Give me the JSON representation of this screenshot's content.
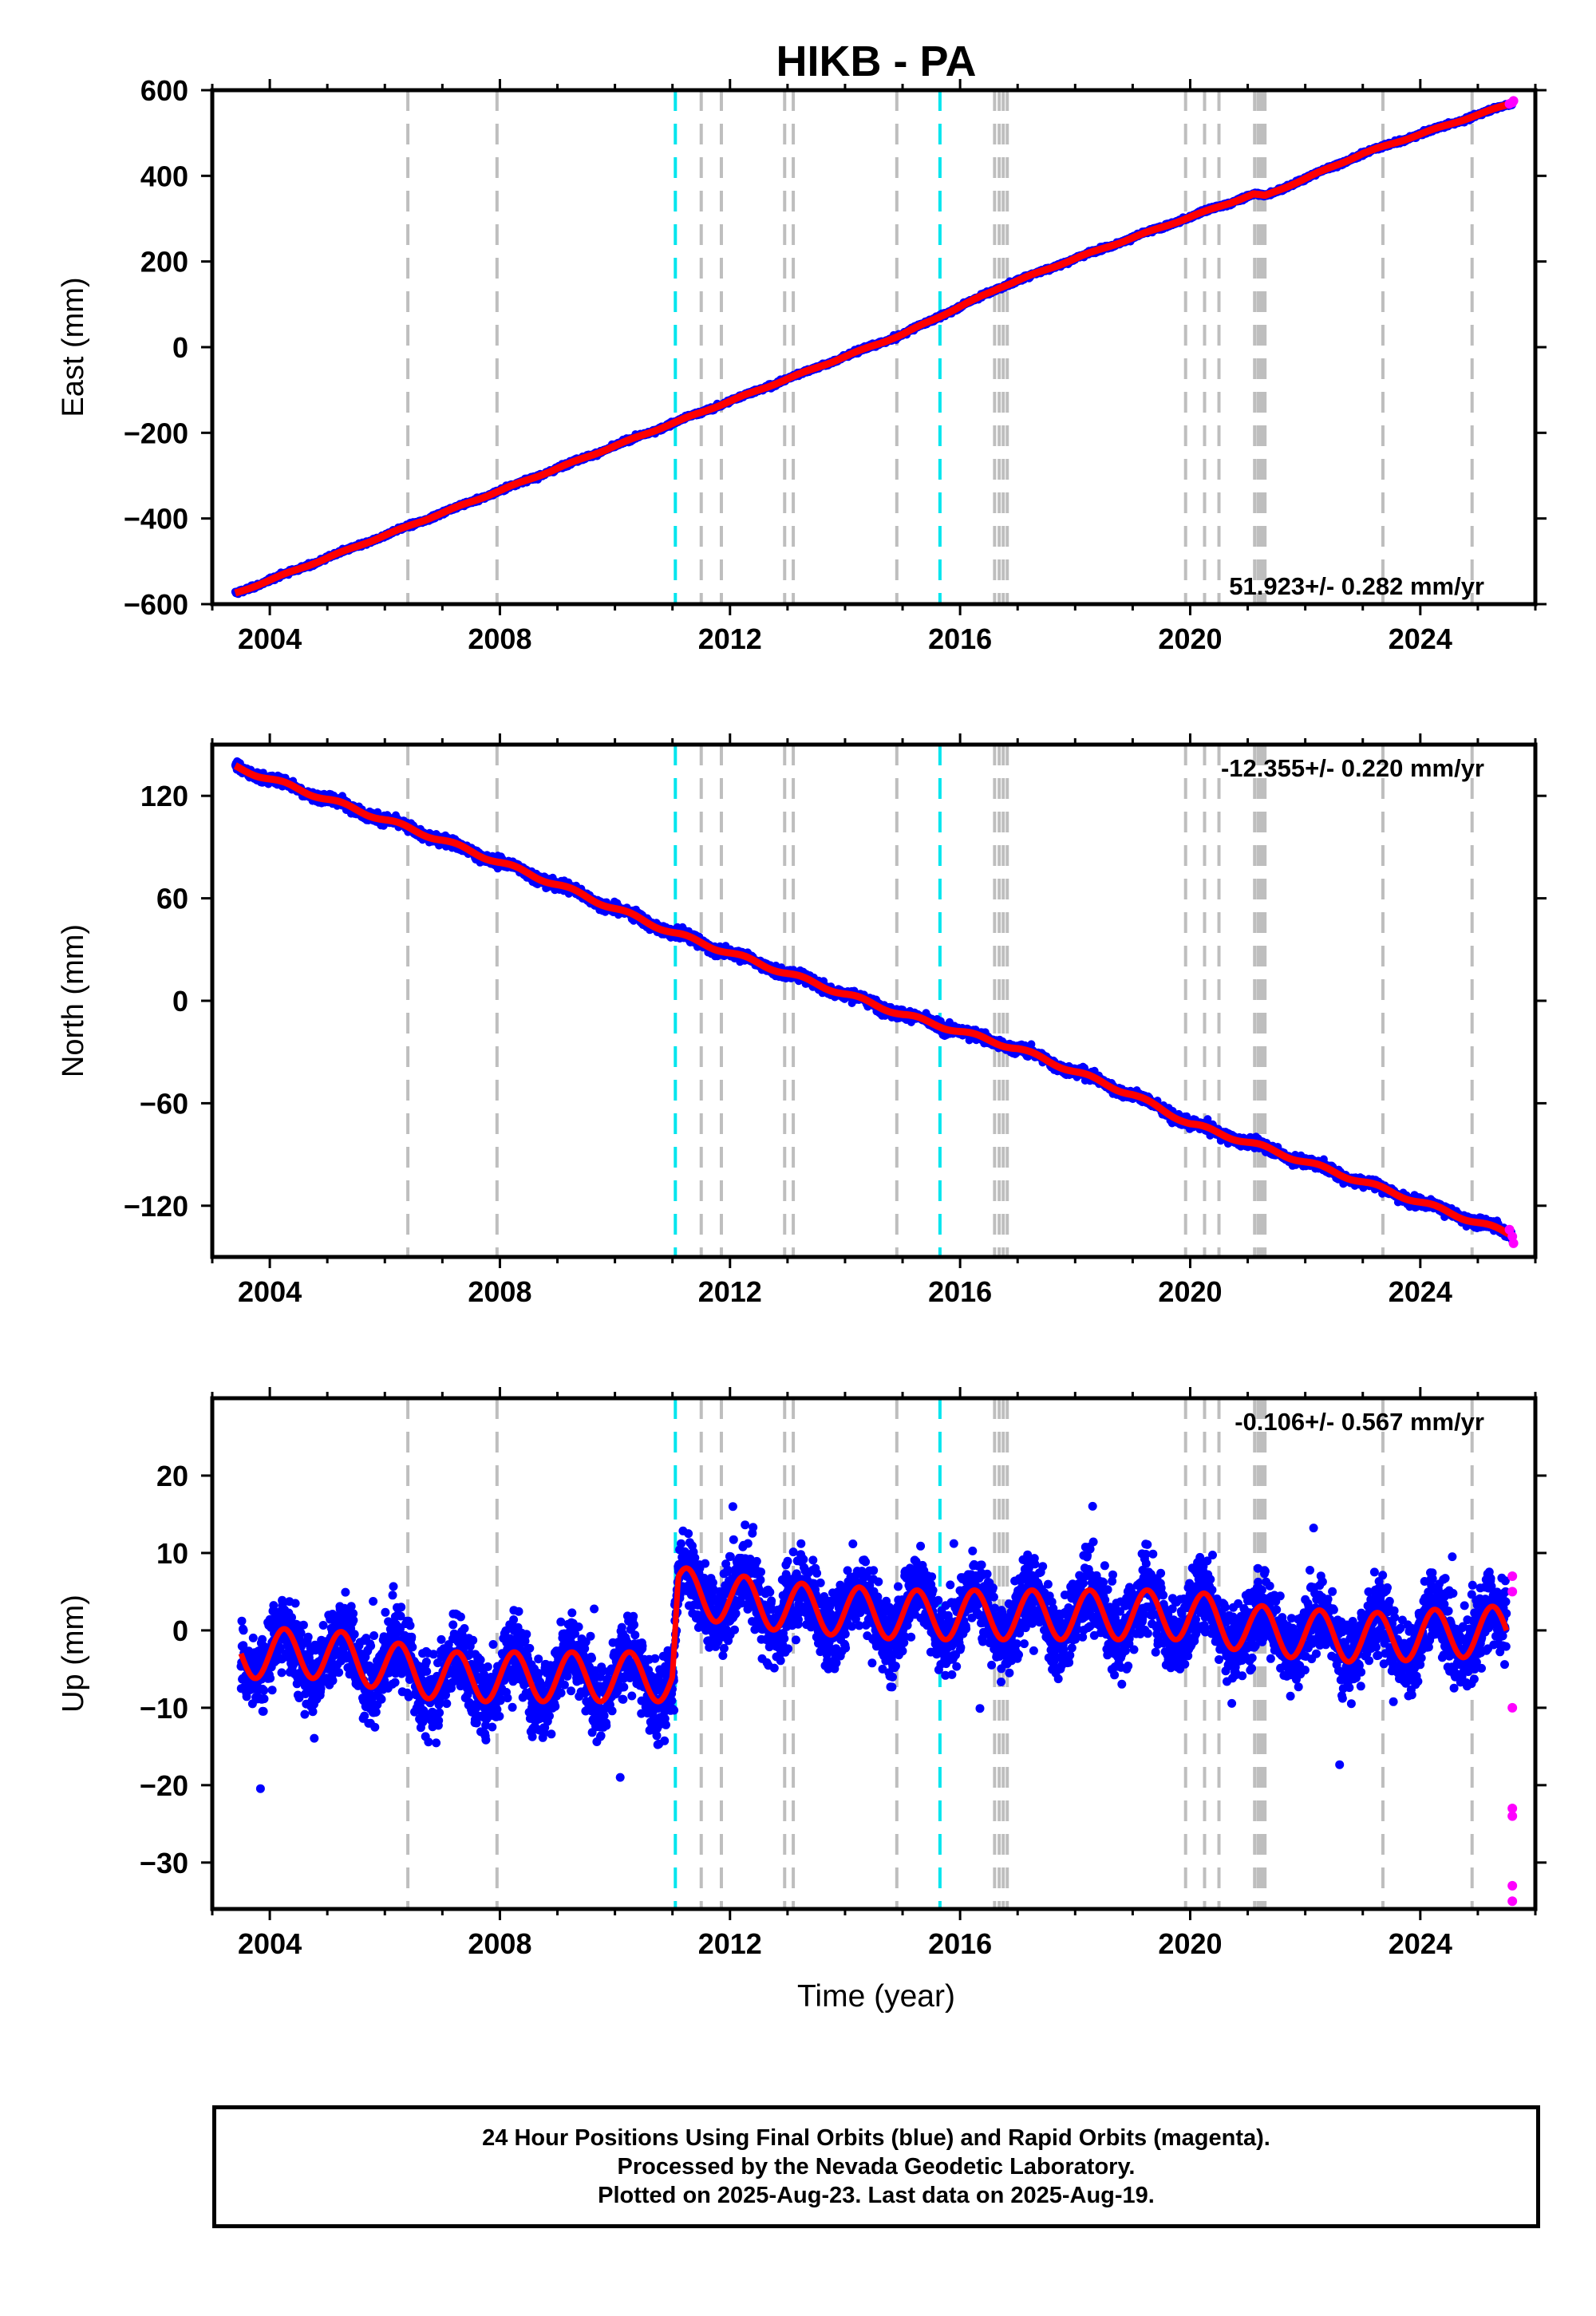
{
  "title": "HIKB - PA",
  "x_axis": {
    "label": "Time (year)",
    "range": [
      2003.0,
      2026.0
    ],
    "ticks": [
      2004,
      2008,
      2012,
      2016,
      2020,
      2024
    ],
    "tick_labels": [
      "2004",
      "2008",
      "2012",
      "2016",
      "2020",
      "2024"
    ]
  },
  "event_lines": {
    "equipment_changes_cyan": [
      2011.05,
      2015.65
    ],
    "earthquakes_gray": [
      2006.4,
      2007.95,
      2011.5,
      2011.85,
      2012.95,
      2013.1,
      2014.9,
      2016.6,
      2016.68,
      2016.75,
      2016.82,
      2019.92,
      2020.25,
      2020.5,
      2021.12,
      2021.18,
      2021.22,
      2021.26,
      2021.3,
      2023.35,
      2024.9
    ],
    "cyan_color": "#00e5ee",
    "gray_color": "#bebebe"
  },
  "colors": {
    "final_orbits": "#0000ff",
    "rapid_orbits": "#ff00ff",
    "model_fit": "#ff0000"
  },
  "panels": [
    {
      "id": "east",
      "ylabel": "East (mm)",
      "rate_text": "51.923+/- 0.282 mm/yr",
      "rate_position": "bottom-right"
    },
    {
      "id": "north",
      "ylabel": "North (mm)",
      "rate_text": "-12.355+/- 0.220 mm/yr",
      "rate_position": "top-right"
    },
    {
      "id": "up",
      "ylabel": "Up (mm)",
      "rate_text": "-0.106+/- 0.567 mm/yr",
      "rate_position": "top-right"
    }
  ],
  "chart_data": [
    {
      "type": "scatter",
      "panel": "east",
      "ylabel": "East (mm)",
      "xlim": [
        2003.0,
        2026.0
      ],
      "ylim": [
        -600,
        600
      ],
      "yticks": [
        -600,
        -400,
        -200,
        0,
        200,
        400,
        600
      ],
      "ytick_labels": [
        "−600",
        "−400",
        "−200",
        "0",
        "200",
        "400",
        "600"
      ],
      "rate_mm_per_yr": 51.923,
      "rate_sigma": 0.282,
      "series": [
        {
          "name": "Final Orbits",
          "color": "#0000ff",
          "x": [
            2003.4,
            2005.0,
            2007.0,
            2009.0,
            2011.0,
            2013.0,
            2015.0,
            2016.7,
            2018.0,
            2020.0,
            2021.1,
            2021.3,
            2023.0,
            2025.6
          ],
          "y": [
            -575,
            -492,
            -387,
            -283,
            -178,
            -74,
            30,
            140,
            207,
            304,
            357,
            353,
            452,
            570
          ]
        },
        {
          "name": "Rapid Orbits",
          "color": "#ff00ff",
          "x": [
            2025.55,
            2025.6,
            2025.62
          ],
          "y": [
            568,
            571,
            575
          ]
        }
      ]
    },
    {
      "type": "scatter",
      "panel": "north",
      "ylabel": "North (mm)",
      "xlim": [
        2003.0,
        2026.0
      ],
      "ylim": [
        -150,
        150
      ],
      "yticks": [
        -120,
        -60,
        0,
        60,
        120
      ],
      "ytick_labels": [
        "−120",
        "−60",
        "0",
        "60",
        "120"
      ],
      "rate_mm_per_yr": -12.355,
      "rate_sigma": 0.22,
      "series": [
        {
          "name": "Final Orbits",
          "color": "#0000ff",
          "x": [
            2003.4,
            2005.0,
            2007.0,
            2009.0,
            2011.0,
            2013.0,
            2015.0,
            2017.0,
            2019.0,
            2020.0,
            2021.2,
            2023.0,
            2025.6
          ],
          "y": [
            137,
            118,
            94,
            68,
            40,
            16,
            -8,
            -28,
            -55,
            -72,
            -85,
            -106,
            -137
          ]
        },
        {
          "name": "Rapid Orbits",
          "color": "#ff00ff",
          "x": [
            2025.55,
            2025.6,
            2025.62
          ],
          "y": [
            -134,
            -138,
            -142
          ]
        }
      ]
    },
    {
      "type": "scatter",
      "panel": "up",
      "ylabel": "Up (mm)",
      "xlim": [
        2003.0,
        2026.0
      ],
      "ylim": [
        -36,
        30
      ],
      "yticks": [
        -30,
        -20,
        -10,
        0,
        10,
        20
      ],
      "ytick_labels": [
        "−30",
        "−20",
        "−10",
        "0",
        "10",
        "20"
      ],
      "rate_mm_per_yr": -0.106,
      "rate_sigma": 0.567,
      "series": [
        {
          "name": "Final Orbits",
          "color": "#0000ff",
          "x": [
            2003.5,
            2005.0,
            2007.0,
            2009.0,
            2011.0,
            2011.1,
            2013.0,
            2015.0,
            2017.0,
            2019.9,
            2020.0,
            2021.2,
            2023.0,
            2025.5
          ],
          "y": [
            -3,
            -3,
            -6,
            -6,
            -6,
            5,
            3,
            2,
            2,
            2,
            2,
            0,
            -1,
            0
          ]
        },
        {
          "name": "Rapid Orbits",
          "color": "#ff00ff",
          "x": [
            2025.6,
            2025.6,
            2025.6,
            2025.6,
            2025.6,
            2025.6,
            2025.6
          ],
          "y": [
            7,
            5,
            -10,
            -23,
            -24,
            -33,
            -35
          ]
        }
      ]
    }
  ],
  "caption": {
    "line1": "24 Hour Positions Using Final Orbits (blue) and Rapid Orbits (magenta).",
    "line2": "Processed by the Nevada Geodetic Laboratory.",
    "line3": "Plotted on 2025-Aug-23. Last data on 2025-Aug-19."
  }
}
